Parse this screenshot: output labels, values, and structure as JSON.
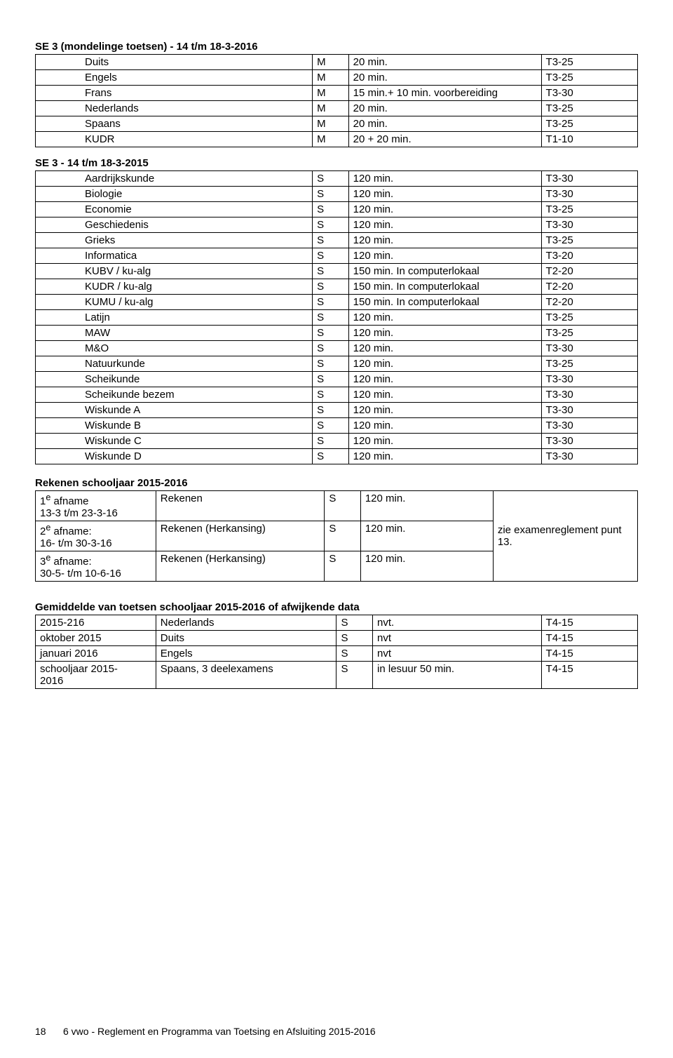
{
  "section1": {
    "title": "SE 3 (mondelinge toetsen) - 14 t/m 18-3-2016",
    "rows": [
      {
        "subject": "Duits",
        "sm": "M",
        "dur": "20 min.",
        "code": "T3-25"
      },
      {
        "subject": "Engels",
        "sm": "M",
        "dur": "20 min.",
        "code": "T3-25"
      },
      {
        "subject": "Frans",
        "sm": "M",
        "dur": "15 min.+ 10 min. voorbereiding",
        "code": "T3-30"
      },
      {
        "subject": "Nederlands",
        "sm": "M",
        "dur": "20 min.",
        "code": "T3-25"
      },
      {
        "subject": "Spaans",
        "sm": "M",
        "dur": "20 min.",
        "code": "T3-25"
      },
      {
        "subject": "KUDR",
        "sm": "M",
        "dur": "20 + 20 min.",
        "code": "T1-10"
      }
    ]
  },
  "section2": {
    "title": "SE 3 - 14 t/m 18-3-2015",
    "rows": [
      {
        "subject": "Aardrijkskunde",
        "sm": "S",
        "dur": "120 min.",
        "code": "T3-30"
      },
      {
        "subject": "Biologie",
        "sm": "S",
        "dur": "120 min.",
        "code": "T3-30"
      },
      {
        "subject": "Economie",
        "sm": "S",
        "dur": "120 min.",
        "code": "T3-25"
      },
      {
        "subject": "Geschiedenis",
        "sm": "S",
        "dur": "120 min.",
        "code": "T3-30"
      },
      {
        "subject": "Grieks",
        "sm": "S",
        "dur": "120 min.",
        "code": "T3-25"
      },
      {
        "subject": "Informatica",
        "sm": "S",
        "dur": "120 min.",
        "code": "T3-20"
      },
      {
        "subject": "KUBV / ku-alg",
        "sm": "S",
        "dur": "150 min. In computerlokaal",
        "code": "T2-20"
      },
      {
        "subject": "KUDR / ku-alg",
        "sm": "S",
        "dur": "150 min. In computerlokaal",
        "code": "T2-20"
      },
      {
        "subject": "KUMU / ku-alg",
        "sm": "S",
        "dur": "150 min. In computerlokaal",
        "code": "T2-20"
      },
      {
        "subject": "Latijn",
        "sm": "S",
        "dur": "120 min.",
        "code": "T3-25"
      },
      {
        "subject": "MAW",
        "sm": "S",
        "dur": "120 min.",
        "code": "T3-25"
      },
      {
        "subject": "M&O",
        "sm": "S",
        "dur": "120 min.",
        "code": "T3-30"
      },
      {
        "subject": "Natuurkunde",
        "sm": "S",
        "dur": "120 min.",
        "code": "T3-25"
      },
      {
        "subject": "Scheikunde",
        "sm": "S",
        "dur": "120 min.",
        "code": "T3-30"
      },
      {
        "subject": "Scheikunde bezem",
        "sm": "S",
        "dur": "120 min.",
        "code": "T3-30"
      },
      {
        "subject": "Wiskunde A",
        "sm": "S",
        "dur": "120 min.",
        "code": "T3-30"
      },
      {
        "subject": "Wiskunde B",
        "sm": "S",
        "dur": "120 min.",
        "code": "T3-30"
      },
      {
        "subject": "Wiskunde C",
        "sm": "S",
        "dur": "120 min.",
        "code": "T3-30"
      },
      {
        "subject": "Wiskunde D",
        "sm": "S",
        "dur": "120 min.",
        "code": "T3-30"
      }
    ]
  },
  "rekenen": {
    "title": "Rekenen schooljaar 2015-2016",
    "rows": [
      {
        "when": "1e afname\n13-3 t/m 23-3-16",
        "what": "Rekenen",
        "sm": "S",
        "dur": "120 min."
      },
      {
        "when": "2e afname:\n16- t/m 30-3-16",
        "what": "Rekenen (Herkansing)",
        "sm": "S",
        "dur": "120 min."
      },
      {
        "when": "3e afname:\n30-5- t/m 10-6-16",
        "what": "Rekenen (Herkansing)",
        "sm": "S",
        "dur": "120 min."
      }
    ],
    "note": "zie examenreglement punt 13."
  },
  "gemiddelde": {
    "title": "Gemiddelde van toetsen schooljaar 2015-2016 of afwijkende data",
    "rows": [
      {
        "period": "2015-216",
        "subject": "Nederlands",
        "sm": "S",
        "dur": "nvt.",
        "code": "T4-15"
      },
      {
        "period": "oktober 2015",
        "subject": "Duits",
        "sm": "S",
        "dur": "nvt",
        "code": "T4-15"
      },
      {
        "period": "januari 2016",
        "subject": "Engels",
        "sm": "S",
        "dur": "nvt",
        "code": "T4-15"
      },
      {
        "period": "schooljaar 2015-2016",
        "subject": "Spaans, 3 deelexamens",
        "sm": "S",
        "dur": "in lesuur 50 min.",
        "code": "T4-15"
      }
    ]
  },
  "footer": {
    "page": "18",
    "text": "6 vwo - Reglement en Programma van Toetsing en Afsluiting 2015-2016"
  }
}
